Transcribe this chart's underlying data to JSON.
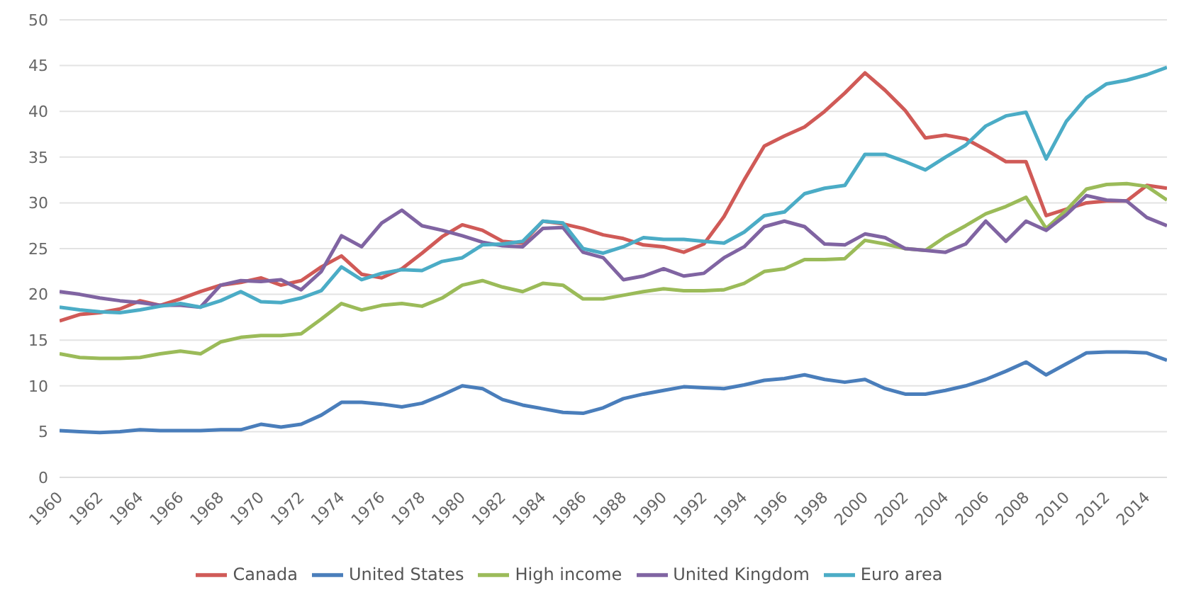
{
  "chart_data": {
    "type": "line",
    "x": [
      1960,
      1961,
      1962,
      1963,
      1964,
      1965,
      1966,
      1967,
      1968,
      1969,
      1970,
      1971,
      1972,
      1973,
      1974,
      1975,
      1976,
      1977,
      1978,
      1979,
      1980,
      1981,
      1982,
      1983,
      1984,
      1985,
      1986,
      1987,
      1988,
      1989,
      1990,
      1991,
      1992,
      1993,
      1994,
      1995,
      1996,
      1997,
      1998,
      1999,
      2000,
      2001,
      2002,
      2003,
      2004,
      2005,
      2006,
      2007,
      2008,
      2009,
      2010,
      2011,
      2012,
      2013,
      2014,
      2015
    ],
    "series": [
      {
        "name": "Canada",
        "color": "#d05a57",
        "values": [
          17.1,
          17.8,
          18,
          18.4,
          19.3,
          18.8,
          19.5,
          20.3,
          21,
          21.3,
          21.8,
          21,
          21.5,
          23,
          24.2,
          22.2,
          21.8,
          22.8,
          24.5,
          26.3,
          27.6,
          27,
          25.8,
          25.6,
          28,
          27.7,
          27.2,
          26.5,
          26.1,
          25.4,
          25.2,
          24.6,
          25.5,
          28.5,
          32.5,
          36.2,
          37.3,
          38.3,
          40,
          42,
          44.2,
          42.3,
          40.1,
          37.1,
          37.4,
          37,
          35.8,
          34.5,
          34.5,
          28.6,
          29.3,
          30,
          30.2,
          30.2,
          31.9,
          31.6
        ]
      },
      {
        "name": "United States",
        "color": "#4a7ebb",
        "values": [
          5.1,
          5,
          4.9,
          5,
          5.2,
          5.1,
          5.1,
          5.1,
          5.2,
          5.2,
          5.8,
          5.5,
          5.8,
          6.8,
          8.2,
          8.2,
          8,
          7.7,
          8.1,
          9,
          10,
          9.7,
          8.5,
          7.9,
          7.5,
          7.1,
          7,
          7.6,
          8.6,
          9.1,
          9.5,
          9.9,
          9.8,
          9.7,
          10.1,
          10.6,
          10.8,
          11.2,
          10.7,
          10.4,
          10.7,
          9.7,
          9.1,
          9.1,
          9.5,
          10,
          10.7,
          11.6,
          12.6,
          11.2,
          12.4,
          13.6,
          13.7,
          13.7,
          13.6,
          12.8
        ]
      },
      {
        "name": "High income",
        "color": "#9bbb59",
        "values": [
          13.5,
          13.1,
          13,
          13,
          13.1,
          13.5,
          13.8,
          13.5,
          14.8,
          15.3,
          15.5,
          15.5,
          15.7,
          17.3,
          19,
          18.3,
          18.8,
          19,
          18.7,
          19.6,
          21,
          21.5,
          20.8,
          20.3,
          21.2,
          21,
          19.5,
          19.5,
          19.9,
          20.3,
          20.6,
          20.4,
          20.4,
          20.5,
          21.2,
          22.5,
          22.8,
          23.8,
          23.8,
          23.9,
          25.9,
          25.5,
          25,
          24.8,
          26.3,
          27.5,
          28.8,
          29.6,
          30.6,
          27.2,
          29.2,
          31.5,
          32,
          32.1,
          31.8,
          30.3
        ]
      },
      {
        "name": "United Kingdom",
        "color": "#8064a2",
        "values": [
          20.3,
          20,
          19.6,
          19.3,
          19.1,
          18.8,
          18.8,
          18.6,
          21,
          21.5,
          21.4,
          21.6,
          20.5,
          22.5,
          26.4,
          25.2,
          27.8,
          29.2,
          27.5,
          27,
          26.4,
          25.7,
          25.3,
          25.2,
          27.2,
          27.3,
          24.6,
          24,
          21.6,
          22,
          22.8,
          22,
          22.3,
          24,
          25.2,
          27.4,
          28,
          27.4,
          25.5,
          25.4,
          26.6,
          26.2,
          25,
          24.8,
          24.6,
          25.5,
          28,
          25.8,
          28,
          27,
          28.7,
          30.8,
          30.3,
          30.2,
          28.4,
          27.5
        ]
      },
      {
        "name": "Euro area",
        "color": "#4bacc6",
        "values": [
          18.6,
          18.3,
          18.1,
          18,
          18.3,
          18.7,
          19,
          18.6,
          19.3,
          20.3,
          19.2,
          19.1,
          19.6,
          20.4,
          23,
          21.6,
          22.3,
          22.7,
          22.6,
          23.6,
          24,
          25.4,
          25.5,
          25.8,
          28,
          27.8,
          25,
          24.5,
          25.2,
          26.2,
          26,
          26,
          25.8,
          25.6,
          26.8,
          28.6,
          29,
          31,
          31.6,
          31.9,
          35.3,
          35.3,
          34.5,
          33.6,
          35,
          36.3,
          38.4,
          39.5,
          39.9,
          34.8,
          38.9,
          41.5,
          43,
          43.4,
          44,
          44.8
        ]
      }
    ],
    "xlim": [
      1960,
      2015
    ],
    "xticks": [
      1960,
      1962,
      1964,
      1966,
      1968,
      1970,
      1972,
      1974,
      1976,
      1978,
      1980,
      1982,
      1984,
      1986,
      1988,
      1990,
      1992,
      1994,
      1996,
      1998,
      2000,
      2002,
      2004,
      2006,
      2008,
      2010,
      2012,
      2014
    ],
    "ylim": [
      0,
      50
    ],
    "yticks": [
      0,
      5,
      10,
      15,
      20,
      25,
      30,
      35,
      40,
      45,
      50
    ],
    "grid": "y",
    "legend": "bottom",
    "marker": "none",
    "line_style": "solid"
  }
}
